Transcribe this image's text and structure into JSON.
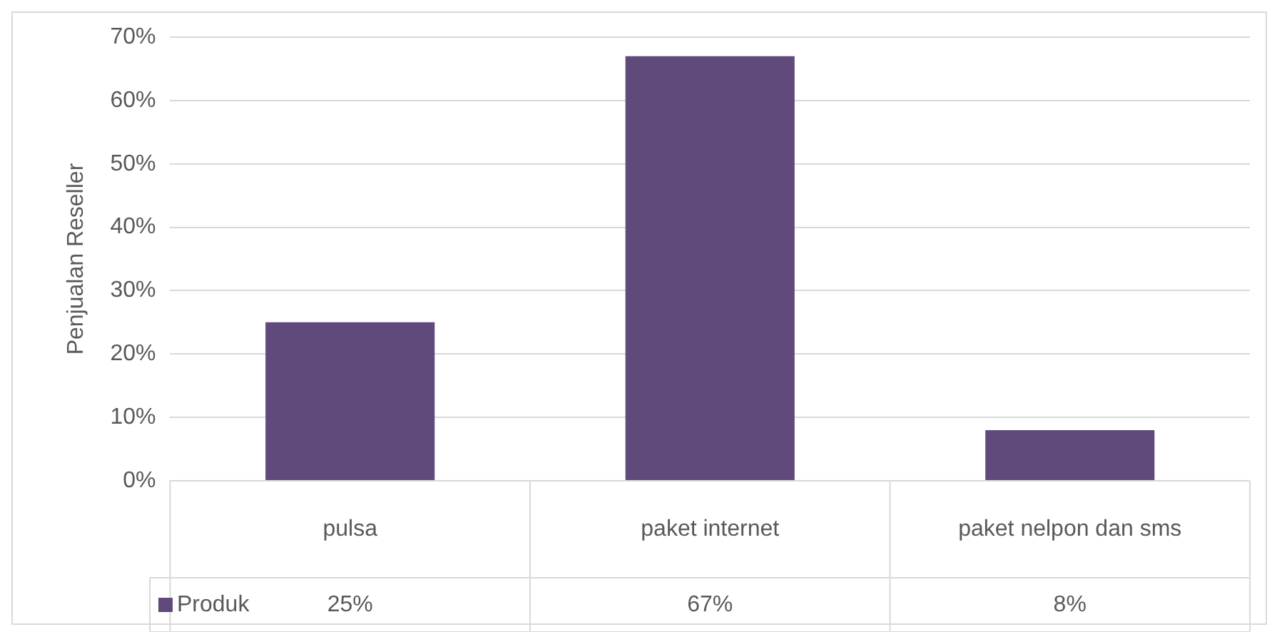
{
  "chart_data": {
    "type": "bar",
    "ylabel": "Penjualan Reseller",
    "categories": [
      "pulsa",
      "paket internet",
      "paket nelpon dan sms"
    ],
    "series": [
      {
        "name": "Produk",
        "color": "#5f4a7b",
        "values": [
          25,
          67,
          8
        ],
        "value_labels": [
          "25%",
          "67%",
          "8%"
        ]
      }
    ],
    "ylim": [
      0,
      70
    ],
    "yticks": [
      {
        "value": 0,
        "label": "0%"
      },
      {
        "value": 10,
        "label": "10%"
      },
      {
        "value": 20,
        "label": "20%"
      },
      {
        "value": 30,
        "label": "30%"
      },
      {
        "value": 40,
        "label": "40%"
      },
      {
        "value": 50,
        "label": "50%"
      },
      {
        "value": 60,
        "label": "60%"
      },
      {
        "value": 70,
        "label": "70%"
      }
    ],
    "grid": "y",
    "legend": "bottom"
  }
}
